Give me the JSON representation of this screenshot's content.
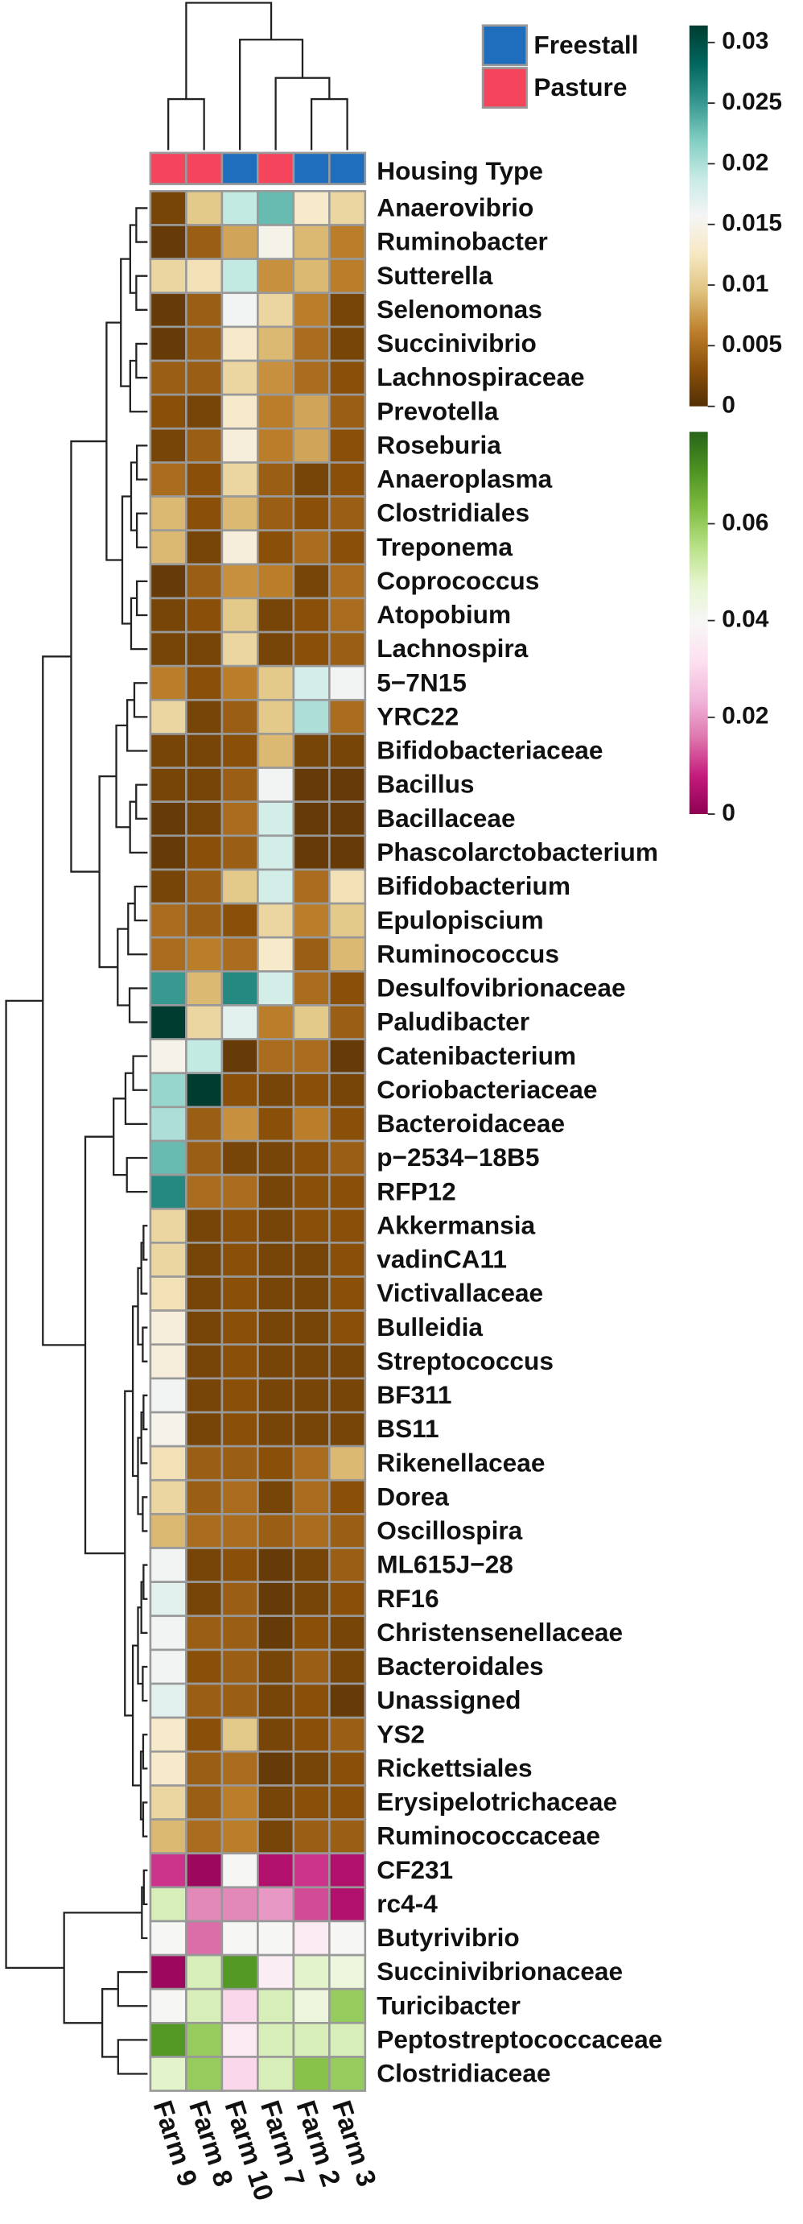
{
  "chart_data": {
    "type": "heatmap",
    "columns": [
      "Farm 9",
      "Farm 8",
      "Farm 10",
      "Farm 7",
      "Farm 2",
      "Farm 3"
    ],
    "annotation_label": "Housing Type",
    "housing_type": [
      "Pasture",
      "Pasture",
      "Freestall",
      "Pasture",
      "Freestall",
      "Freestall"
    ],
    "legend": [
      {
        "name": "Freestall",
        "color": "#1f6ebd"
      },
      {
        "name": "Pasture",
        "color": "#f5455c"
      }
    ],
    "blocks": [
      {
        "rows": [
          "Anaerovibrio",
          "Ruminobacter",
          "Sutterella",
          "Selenomonas",
          "Succinivibrio",
          "Lachnospiraceae",
          "Prevotella",
          "Roseburia",
          "Anaeroplasma",
          "Clostridiales",
          "Treponema",
          "Coprococcus",
          "Atopobium",
          "Lachnospira",
          "5−7N15",
          "YRC22",
          "Bifidobacteriaceae",
          "Bacillus",
          "Bacillaceae",
          "Phascolarctobacterium",
          "Bifidobacterium",
          "Epulopiscium",
          "Ruminococcus",
          "Desulfovibrionaceae",
          "Paludibacter",
          "Catenibacterium",
          "Coriobacteriaceae",
          "Bacteroidaceae",
          "p−2534−18B5",
          "RFP12",
          "Akkermansia",
          "vadinCA11",
          "Victivallaceae",
          "Bulleidia",
          "Streptococcus",
          "BF311",
          "BS11",
          "Rikenellaceae",
          "Dorea",
          "Oscillospira",
          "ML615J−28",
          "RF16",
          "Christensenellaceae",
          "Bacteroidales",
          "Unassigned",
          "YS2",
          "Rickettsiales",
          "Erysipelotrichaceae",
          "Ruminococcaceae"
        ],
        "values": [
          [
            0.002,
            0.01,
            0.019,
            0.023,
            0.013,
            0.011
          ],
          [
            0.001,
            0.004,
            0.008,
            0.015,
            0.009,
            0.006
          ],
          [
            0.011,
            0.012,
            0.019,
            0.007,
            0.009,
            0.006
          ],
          [
            0.001,
            0.004,
            0.016,
            0.011,
            0.006,
            0.002
          ],
          [
            0.001,
            0.004,
            0.013,
            0.009,
            0.005,
            0.002
          ],
          [
            0.004,
            0.004,
            0.011,
            0.007,
            0.005,
            0.003
          ],
          [
            0.003,
            0.002,
            0.013,
            0.006,
            0.008,
            0.004
          ],
          [
            0.002,
            0.004,
            0.014,
            0.006,
            0.008,
            0.003
          ],
          [
            0.005,
            0.003,
            0.011,
            0.004,
            0.002,
            0.003
          ],
          [
            0.009,
            0.003,
            0.009,
            0.004,
            0.003,
            0.004
          ],
          [
            0.009,
            0.002,
            0.014,
            0.003,
            0.005,
            0.003
          ],
          [
            0.001,
            0.004,
            0.007,
            0.006,
            0.002,
            0.005
          ],
          [
            0.002,
            0.003,
            0.01,
            0.002,
            0.003,
            0.005
          ],
          [
            0.002,
            0.002,
            0.011,
            0.002,
            0.003,
            0.004
          ],
          [
            0.006,
            0.003,
            0.006,
            0.01,
            0.018,
            0.016
          ],
          [
            0.011,
            0.002,
            0.004,
            0.01,
            0.02,
            0.005
          ],
          [
            0.002,
            0.002,
            0.003,
            0.009,
            0.002,
            0.002
          ],
          [
            0.002,
            0.002,
            0.004,
            0.016,
            0.001,
            0.001
          ],
          [
            0.001,
            0.002,
            0.005,
            0.018,
            0.001,
            0.001
          ],
          [
            0.001,
            0.003,
            0.004,
            0.018,
            0.001,
            0.001
          ],
          [
            0.002,
            0.004,
            0.01,
            0.018,
            0.005,
            0.012
          ],
          [
            0.005,
            0.004,
            0.003,
            0.011,
            0.006,
            0.01
          ],
          [
            0.005,
            0.006,
            0.005,
            0.013,
            0.004,
            0.009
          ],
          [
            0.025,
            0.009,
            0.026,
            0.018,
            0.005,
            0.003
          ],
          [
            0.032,
            0.011,
            0.017,
            0.006,
            0.01,
            0.004
          ],
          [
            0.015,
            0.019,
            0.001,
            0.005,
            0.005,
            0.001
          ],
          [
            0.021,
            0.032,
            0.003,
            0.002,
            0.003,
            0.002
          ],
          [
            0.02,
            0.004,
            0.007,
            0.003,
            0.006,
            0.003
          ],
          [
            0.023,
            0.004,
            0.002,
            0.002,
            0.003,
            0.004
          ],
          [
            0.026,
            0.005,
            0.005,
            0.002,
            0.003,
            0.003
          ],
          [
            0.011,
            0.002,
            0.003,
            0.002,
            0.003,
            0.003
          ],
          [
            0.011,
            0.002,
            0.003,
            0.002,
            0.002,
            0.003
          ],
          [
            0.012,
            0.002,
            0.003,
            0.002,
            0.002,
            0.003
          ],
          [
            0.014,
            0.002,
            0.003,
            0.002,
            0.002,
            0.003
          ],
          [
            0.014,
            0.002,
            0.003,
            0.002,
            0.002,
            0.002
          ],
          [
            0.016,
            0.002,
            0.003,
            0.002,
            0.002,
            0.002
          ],
          [
            0.015,
            0.002,
            0.003,
            0.002,
            0.002,
            0.002
          ],
          [
            0.012,
            0.004,
            0.004,
            0.003,
            0.005,
            0.009
          ],
          [
            0.011,
            0.004,
            0.005,
            0.002,
            0.005,
            0.003
          ],
          [
            0.009,
            0.005,
            0.005,
            0.004,
            0.005,
            0.004
          ],
          [
            0.016,
            0.002,
            0.003,
            0.001,
            0.002,
            0.004
          ],
          [
            0.017,
            0.002,
            0.004,
            0.001,
            0.002,
            0.003
          ],
          [
            0.016,
            0.004,
            0.004,
            0.001,
            0.003,
            0.002
          ],
          [
            0.016,
            0.003,
            0.004,
            0.002,
            0.004,
            0.002
          ],
          [
            0.017,
            0.004,
            0.004,
            0.002,
            0.003,
            0.001
          ],
          [
            0.013,
            0.003,
            0.01,
            0.002,
            0.003,
            0.004
          ],
          [
            0.013,
            0.004,
            0.005,
            0.001,
            0.002,
            0.003
          ],
          [
            0.011,
            0.004,
            0.006,
            0.002,
            0.003,
            0.003
          ],
          [
            0.009,
            0.005,
            0.006,
            0.002,
            0.004,
            0.004
          ]
        ],
        "lim": [
          0,
          0.0314
        ],
        "ticks": [
          0,
          0.005,
          0.01,
          0.015,
          0.02,
          0.025,
          0.03
        ],
        "colors": [
          "#543005",
          "#8c510a",
          "#bf812d",
          "#dfc27d",
          "#f6e8c3",
          "#f5f5f5",
          "#c7eae5",
          "#80cdc1",
          "#35978f",
          "#01665e",
          "#003c30"
        ]
      },
      {
        "rows": [
          "CF231",
          "rc4-4",
          "Butyrivibrio",
          "Succinivibrionaceae",
          "Turicibacter",
          "Peptostreptococcaceae",
          "Clostridiaceae"
        ],
        "values": [
          [
            0.01,
            0.002,
            0.04,
            0.005,
            0.01,
            0.005
          ],
          [
            0.05,
            0.018,
            0.018,
            0.02,
            0.012,
            0.005
          ],
          [
            0.04,
            0.015,
            0.04,
            0.04,
            0.035,
            0.04
          ],
          [
            0.002,
            0.05,
            0.07,
            0.036,
            0.048,
            0.045
          ],
          [
            0.04,
            0.05,
            0.03,
            0.05,
            0.045,
            0.06
          ],
          [
            0.07,
            0.06,
            0.035,
            0.05,
            0.05,
            0.05
          ],
          [
            0.048,
            0.06,
            0.03,
            0.05,
            0.062,
            0.06
          ]
        ],
        "lim": [
          0,
          0.079
        ],
        "ticks": [
          0,
          0.02,
          0.04,
          0.06
        ],
        "colors": [
          "#8e0152",
          "#c51b7d",
          "#de77ae",
          "#f1b6da",
          "#fde0ef",
          "#f7f7f7",
          "#e6f5d0",
          "#b8e186",
          "#7fbc41",
          "#4d9221",
          "#276419"
        ]
      }
    ]
  }
}
